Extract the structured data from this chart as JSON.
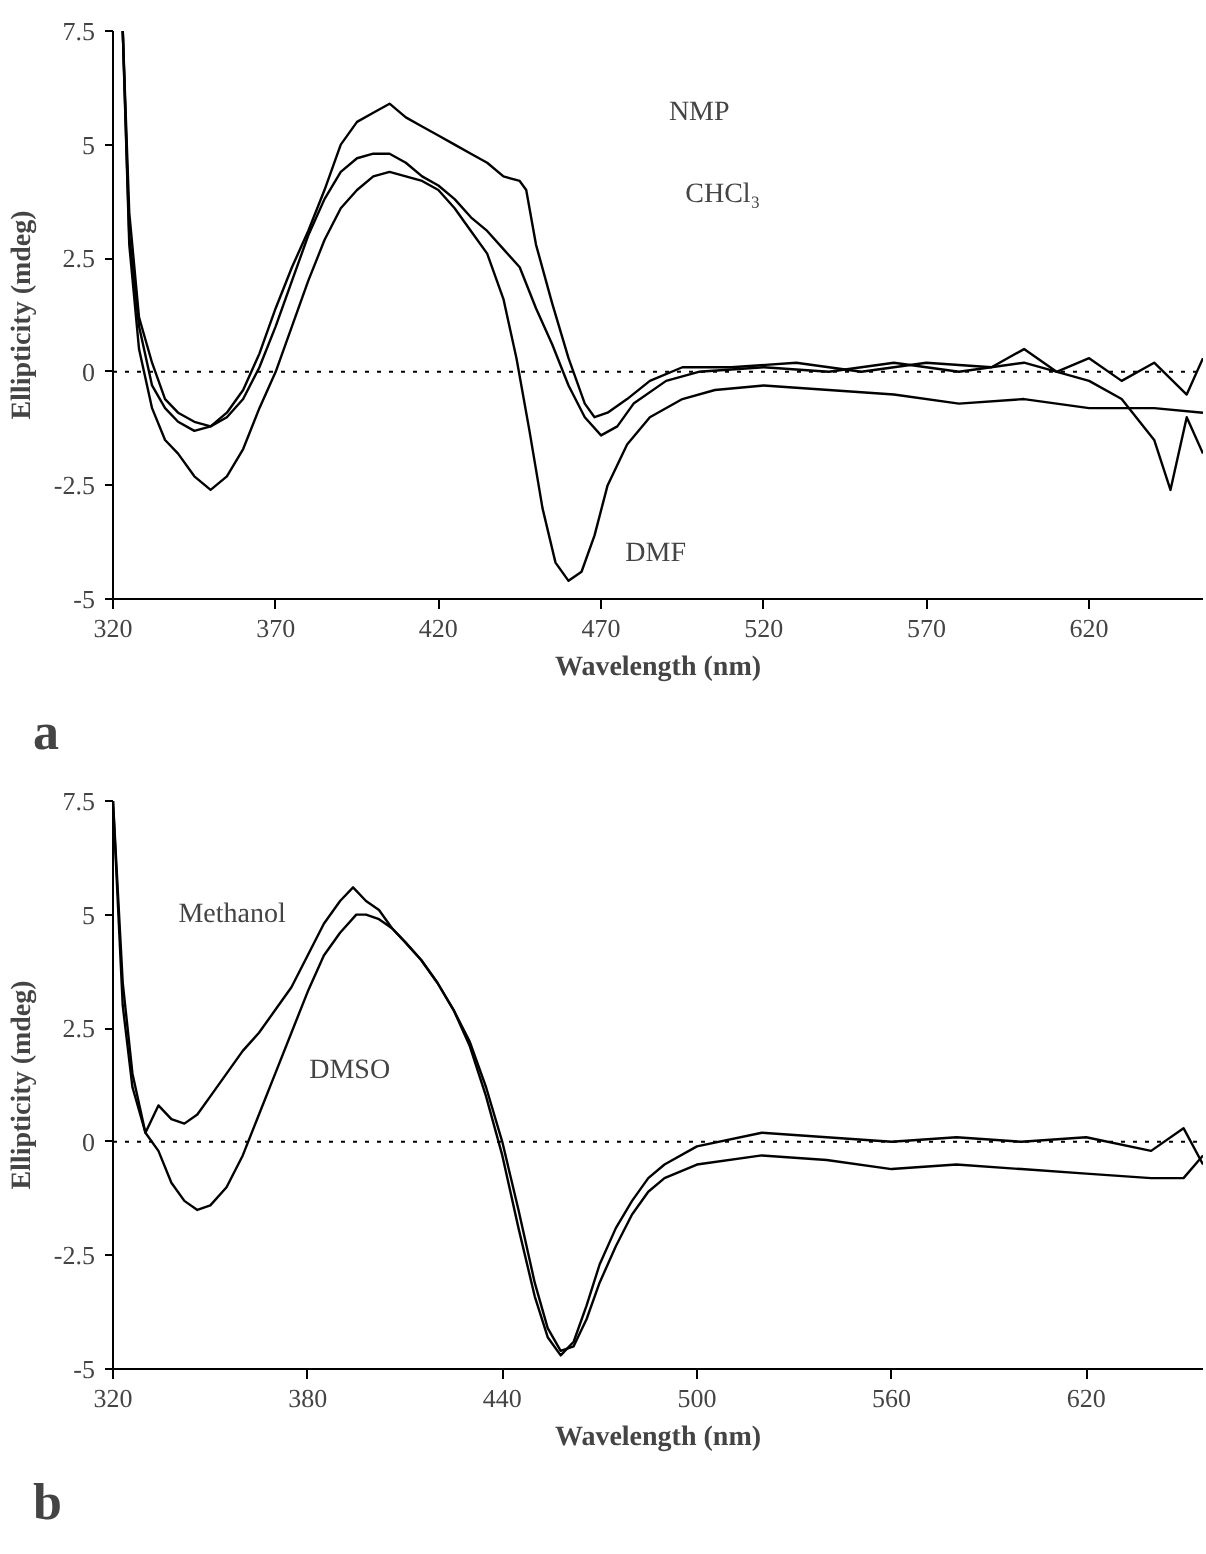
{
  "chart_data": [
    {
      "type": "line",
      "xlabel": "Wavelength (nm)",
      "ylabel": "Ellipticity (mdeg)",
      "xlim": [
        320,
        655
      ],
      "ylim": [
        -5,
        7.5
      ],
      "xticks": [
        320,
        370,
        420,
        470,
        520,
        570,
        620
      ],
      "yticks": [
        -5,
        -2.5,
        0,
        2.5,
        5,
        7.5
      ],
      "grid": false,
      "marker": "none",
      "line_style": "solid",
      "ref_lines": [
        {
          "axis": "y",
          "value": 0,
          "label": null,
          "color": "#000000",
          "line_style": "dotted"
        }
      ],
      "annotations": [
        "NMP",
        "CHCl₃",
        "DMF",
        "a"
      ],
      "series": [
        {
          "color": "#000000",
          "x": [
            323,
            325,
            328,
            332,
            336,
            340,
            345,
            350,
            355,
            360,
            365,
            370,
            375,
            380,
            385,
            390,
            395,
            400,
            405,
            410,
            415,
            420,
            425,
            430,
            435,
            440,
            445,
            447,
            450,
            455,
            460,
            465,
            468,
            472,
            478,
            485,
            495,
            510,
            530,
            550,
            570,
            590,
            600,
            610,
            620,
            630,
            640,
            650,
            655
          ],
          "values": [
            7.5,
            3.5,
            1.2,
            0.2,
            -0.6,
            -0.9,
            -1.1,
            -1.2,
            -0.9,
            -0.4,
            0.4,
            1.4,
            2.3,
            3.1,
            4.0,
            5.0,
            5.5,
            5.7,
            5.9,
            5.6,
            5.4,
            5.2,
            5.0,
            4.8,
            4.6,
            4.3,
            4.2,
            4.0,
            2.8,
            1.5,
            0.3,
            -0.7,
            -1.0,
            -0.9,
            -0.6,
            -0.2,
            0.1,
            0.1,
            0.2,
            0.0,
            0.2,
            0.1,
            0.5,
            0.0,
            0.3,
            -0.2,
            0.2,
            -0.5,
            0.3
          ]
        },
        {
          "color": "#000000",
          "x": [
            323,
            325,
            328,
            332,
            336,
            340,
            345,
            350,
            355,
            360,
            365,
            370,
            375,
            380,
            385,
            390,
            395,
            400,
            405,
            410,
            415,
            420,
            425,
            430,
            435,
            440,
            445,
            450,
            455,
            460,
            465,
            470,
            475,
            480,
            490,
            500,
            520,
            540,
            560,
            580,
            600,
            620,
            630,
            640,
            645,
            650,
            655
          ],
          "values": [
            7.5,
            3.0,
            1.0,
            -0.3,
            -0.8,
            -1.1,
            -1.3,
            -1.2,
            -1.0,
            -0.6,
            0.1,
            1.0,
            2.0,
            3.0,
            3.8,
            4.4,
            4.7,
            4.8,
            4.8,
            4.6,
            4.3,
            4.1,
            3.8,
            3.4,
            3.1,
            2.7,
            2.3,
            1.4,
            0.6,
            -0.3,
            -1.0,
            -1.4,
            -1.2,
            -0.7,
            -0.2,
            0.0,
            0.1,
            0.0,
            0.2,
            0.0,
            0.2,
            -0.2,
            -0.6,
            -1.5,
            -2.6,
            -1.0,
            -1.8
          ]
        },
        {
          "color": "#000000",
          "x": [
            323,
            325,
            328,
            332,
            336,
            340,
            345,
            350,
            355,
            360,
            365,
            370,
            375,
            380,
            385,
            390,
            395,
            400,
            405,
            410,
            415,
            420,
            425,
            430,
            435,
            440,
            444,
            448,
            452,
            456,
            460,
            464,
            468,
            472,
            478,
            485,
            495,
            505,
            520,
            540,
            560,
            580,
            600,
            620,
            640,
            655
          ],
          "values": [
            7.5,
            2.8,
            0.5,
            -0.8,
            -1.5,
            -1.8,
            -2.3,
            -2.6,
            -2.3,
            -1.7,
            -0.8,
            0.0,
            1.0,
            2.0,
            2.9,
            3.6,
            4.0,
            4.3,
            4.4,
            4.3,
            4.2,
            4.0,
            3.6,
            3.1,
            2.6,
            1.6,
            0.3,
            -1.3,
            -3.0,
            -4.2,
            -4.6,
            -4.4,
            -3.6,
            -2.5,
            -1.6,
            -1.0,
            -0.6,
            -0.4,
            -0.3,
            -0.4,
            -0.5,
            -0.7,
            -0.6,
            -0.8,
            -0.8,
            -0.9
          ]
        }
      ]
    },
    {
      "type": "line",
      "xlabel": "Wavelength (nm)",
      "ylabel": "Ellipticity (mdeg)",
      "xlim": [
        320,
        656
      ],
      "ylim": [
        -5,
        7.5
      ],
      "xticks": [
        320,
        380,
        440,
        500,
        560,
        620
      ],
      "yticks": [
        -5,
        -2.5,
        0,
        2.5,
        5,
        7.5
      ],
      "grid": false,
      "marker": "none",
      "line_style": "solid",
      "ref_lines": [
        {
          "axis": "y",
          "value": 0,
          "label": null,
          "color": "#000000",
          "line_style": "dotted"
        }
      ],
      "annotations": [
        "Methanol",
        "DMSO",
        "b"
      ],
      "series": [
        {
          "color": "#000000",
          "x": [
            320,
            323,
            326,
            330,
            334,
            338,
            342,
            346,
            350,
            355,
            360,
            365,
            370,
            375,
            380,
            385,
            390,
            394,
            398,
            402,
            406,
            410,
            415,
            420,
            425,
            430,
            435,
            440,
            445,
            450,
            454,
            458,
            462,
            466,
            470,
            475,
            480,
            485,
            490,
            500,
            520,
            540,
            560,
            580,
            600,
            620,
            640,
            650,
            656
          ],
          "values": [
            7.5,
            3.5,
            1.5,
            0.2,
            0.8,
            0.5,
            0.4,
            0.6,
            1.0,
            1.5,
            2.0,
            2.4,
            2.9,
            3.4,
            4.1,
            4.8,
            5.3,
            5.6,
            5.3,
            5.1,
            4.7,
            4.4,
            4.0,
            3.5,
            2.9,
            2.1,
            1.0,
            -0.3,
            -1.9,
            -3.4,
            -4.3,
            -4.7,
            -4.4,
            -3.6,
            -2.7,
            -1.9,
            -1.3,
            -0.8,
            -0.5,
            -0.1,
            0.2,
            0.1,
            0.0,
            0.1,
            0.0,
            0.1,
            -0.2,
            0.3,
            -0.5
          ]
        },
        {
          "color": "#000000",
          "x": [
            320,
            323,
            326,
            330,
            334,
            338,
            342,
            346,
            350,
            355,
            360,
            365,
            370,
            375,
            380,
            385,
            390,
            395,
            398,
            402,
            406,
            410,
            415,
            420,
            425,
            430,
            435,
            440,
            445,
            450,
            454,
            458,
            462,
            466,
            470,
            475,
            480,
            485,
            490,
            500,
            520,
            540,
            560,
            580,
            600,
            620,
            640,
            650,
            656
          ],
          "values": [
            7.5,
            3.0,
            1.2,
            0.2,
            -0.2,
            -0.9,
            -1.3,
            -1.5,
            -1.4,
            -1.0,
            -0.3,
            0.6,
            1.5,
            2.4,
            3.3,
            4.1,
            4.6,
            5.0,
            5.0,
            4.9,
            4.7,
            4.4,
            4.0,
            3.5,
            2.9,
            2.2,
            1.2,
            0.0,
            -1.5,
            -3.1,
            -4.1,
            -4.6,
            -4.5,
            -3.9,
            -3.1,
            -2.3,
            -1.6,
            -1.1,
            -0.8,
            -0.5,
            -0.3,
            -0.4,
            -0.6,
            -0.5,
            -0.6,
            -0.7,
            -0.8,
            -0.8,
            -0.3
          ]
        }
      ]
    }
  ]
}
